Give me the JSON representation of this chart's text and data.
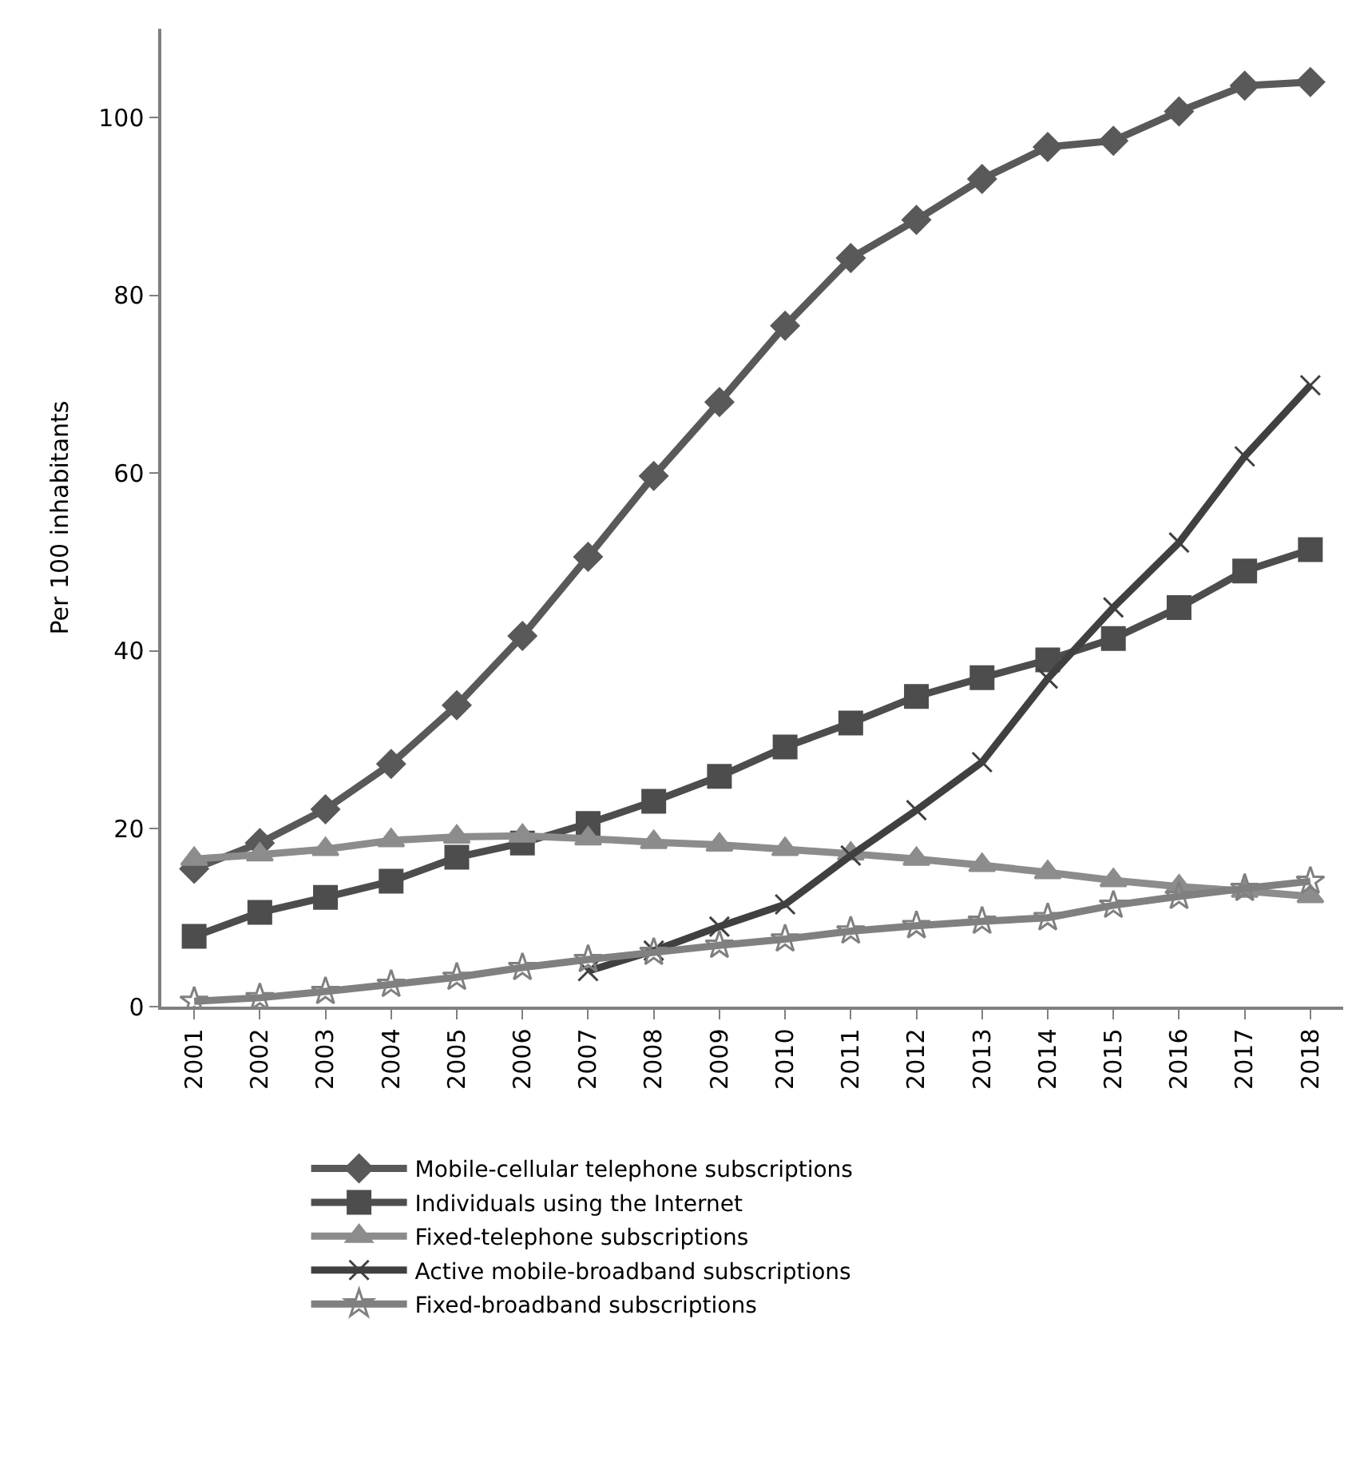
{
  "chart_data": {
    "type": "line",
    "ylabel": "Per 100 inhabitants",
    "categories": [
      "2001",
      "2002",
      "2003",
      "2004",
      "2005",
      "2006",
      "2007",
      "2008",
      "2009",
      "2010",
      "2011",
      "2012",
      "2013",
      "2014",
      "2015",
      "2016",
      "2017",
      "2018"
    ],
    "series": [
      {
        "name": "Mobile-cellular telephone subscriptions",
        "color": "#595959",
        "marker": "diamond",
        "values": [
          15.5,
          18.4,
          22.2,
          27.3,
          33.9,
          41.7,
          50.6,
          59.7,
          68.0,
          76.6,
          84.2,
          88.5,
          93.1,
          96.7,
          97.4,
          100.7,
          103.6,
          104.0
        ]
      },
      {
        "name": "Individuals using the Internet",
        "color": "#4d4d4d",
        "marker": "square",
        "values": [
          7.9,
          10.6,
          12.3,
          14.1,
          16.8,
          18.4,
          20.6,
          23.1,
          25.9,
          29.2,
          31.9,
          34.9,
          37.0,
          39.0,
          41.4,
          44.9,
          49.0,
          51.4
        ]
      },
      {
        "name": "Fixed-telephone subscriptions",
        "color": "#8c8c8c",
        "marker": "triangle",
        "values": [
          16.6,
          17.1,
          17.7,
          18.7,
          19.1,
          19.2,
          18.9,
          18.5,
          18.2,
          17.7,
          17.2,
          16.6,
          15.9,
          15.1,
          14.2,
          13.5,
          13.0,
          12.4
        ]
      },
      {
        "name": "Active mobile-broadband subscriptions",
        "color": "#404040",
        "marker": "cross",
        "values": [
          null,
          null,
          null,
          null,
          null,
          null,
          4.0,
          6.3,
          9.0,
          11.5,
          17.0,
          22.1,
          27.5,
          36.9,
          44.9,
          52.2,
          61.9,
          69.9
        ]
      },
      {
        "name": "Fixed-broadband subscriptions",
        "color": "#808080",
        "marker": "star",
        "values": [
          0.6,
          1.0,
          1.7,
          2.5,
          3.3,
          4.4,
          5.3,
          6.1,
          6.9,
          7.6,
          8.5,
          9.1,
          9.6,
          10.0,
          11.4,
          12.4,
          13.3,
          14.1
        ]
      }
    ],
    "ylim": [
      0,
      110
    ],
    "yticks": [
      0,
      20,
      40,
      60,
      80,
      100
    ],
    "legend": "bottom",
    "line_style": "solid"
  }
}
